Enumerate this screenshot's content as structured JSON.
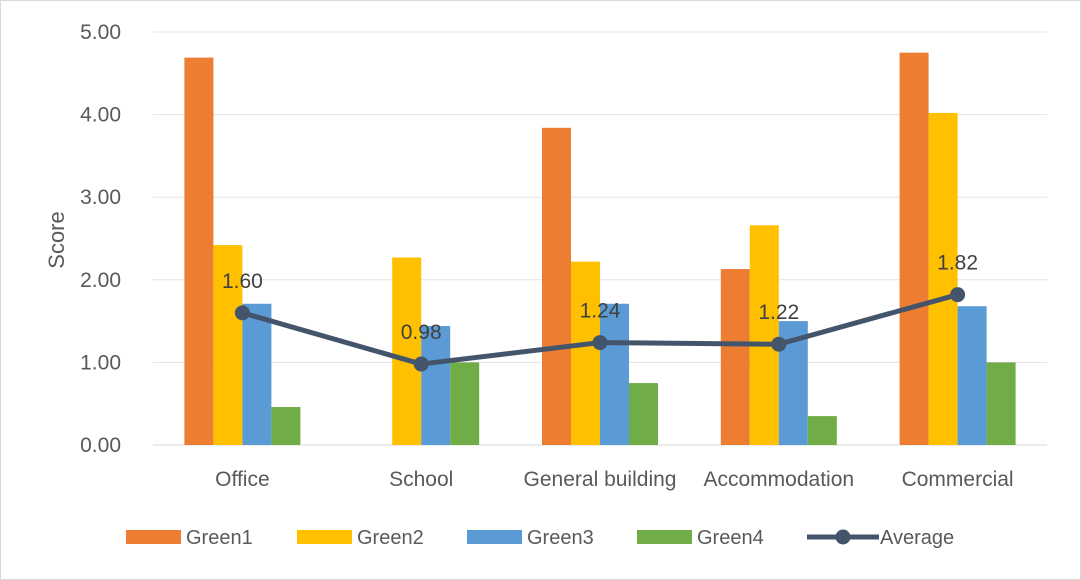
{
  "chart_data": {
    "type": "bar",
    "categories": [
      "Office",
      "School",
      "General building",
      "Accommodation",
      "Commercial"
    ],
    "series": [
      {
        "name": "Green1",
        "type": "bar",
        "color": "#ED7D31",
        "values": [
          4.69,
          0,
          3.84,
          2.13,
          4.75
        ]
      },
      {
        "name": "Green2",
        "type": "bar",
        "color": "#FFC000",
        "values": [
          2.42,
          2.27,
          2.22,
          2.66,
          4.02
        ]
      },
      {
        "name": "Green3",
        "type": "bar",
        "color": "#5B9BD5",
        "values": [
          1.71,
          1.44,
          1.71,
          1.5,
          1.68
        ]
      },
      {
        "name": "Green4",
        "type": "bar",
        "color": "#70AD47",
        "values": [
          0.46,
          1.0,
          0.75,
          0.35,
          1.0
        ]
      },
      {
        "name": "Average",
        "type": "line",
        "color": "#44546A",
        "values": [
          1.6,
          0.98,
          1.24,
          1.22,
          1.82
        ],
        "labels": [
          "1.60",
          "0.98",
          "1.24",
          "1.22",
          "1.82"
        ]
      }
    ],
    "ylabel": "Score",
    "xlabel": "",
    "ylim": [
      0,
      5
    ],
    "yticks": [
      "0.00",
      "1.00",
      "2.00",
      "3.00",
      "4.00",
      "5.00"
    ],
    "grid": true,
    "legend_position": "bottom"
  }
}
